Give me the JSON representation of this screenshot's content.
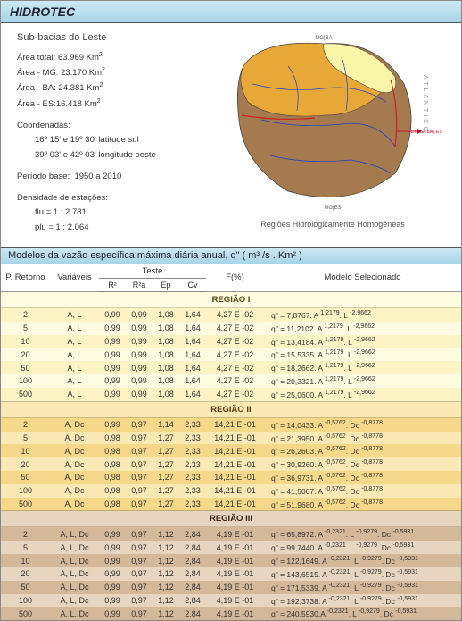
{
  "title": "HIDROTEC",
  "info": {
    "subtitle": "Sub-bacias do Leste",
    "area_total_label": "Área total:",
    "area_total": "63.969 Km",
    "area_mg_label": "Área - MG:",
    "area_mg": "23.170 Km",
    "area_ba_label": "Área - BA:",
    "area_ba": "24.381 Km",
    "area_es_label": "Área - ES:",
    "area_es": "16.418 Km",
    "coord_label": "Coordenadas:",
    "lat": "16º 15' e 19º 30'  latitude sul",
    "lon": "39º 03' e 42º 03'  longitude oeste",
    "period_label": "Período base:",
    "period": "1950  a  2010",
    "dens_label": "Densidade de estações:",
    "flu": "flu  = 1 : 2.781",
    "plu": "plu = 1 : 2.064"
  },
  "map": {
    "label_top": "MG|BA",
    "label_bottom": "MG|ES",
    "label_right": "DIVISA BA | ES",
    "ocean": "A T L Â N T I C O",
    "caption": "Regiões Hidrologicamente Homogêneas",
    "colors": {
      "r1": "#faf6a8",
      "r2": "#e8a838",
      "r3": "#a47a4e",
      "river": "#2040d0",
      "outline": "#cc2020"
    }
  },
  "section_title": "Modelos da vazão específica máxima diária anual, q\" ( m³ /s . Km² )",
  "headers": {
    "retorno": "P. Retorno",
    "variaveis": "Variáveis",
    "teste": "Teste",
    "r2": "R²",
    "r2a": "R²a",
    "ep": "Ep",
    "cv": "Cv",
    "f": "F(%)",
    "modelo": "Modelo Selecionado"
  },
  "regions": [
    {
      "label": "REGIÃO I",
      "class": "r1",
      "variaveis": "A, L",
      "rows": [
        {
          "ret": "2",
          "r2": "0,99",
          "r2a": "0,99",
          "ep": "1,08",
          "cv": "1,64",
          "f": "4,27 E -02",
          "m": "q\" = 7,8767. A 1,2179. L -2,9662"
        },
        {
          "ret": "5",
          "r2": "0,99",
          "r2a": "0,99",
          "ep": "1,08",
          "cv": "1,64",
          "f": "4,27 E -02",
          "m": "q\" = 11,2102. A 1,2179. L -2,9662"
        },
        {
          "ret": "10",
          "r2": "0,99",
          "r2a": "0,99",
          "ep": "1,08",
          "cv": "1,64",
          "f": "4,27 E -02",
          "m": "q\" = 13,4184. A 1,2179. L -2,9662"
        },
        {
          "ret": "20",
          "r2": "0,99",
          "r2a": "0,99",
          "ep": "1,08",
          "cv": "1,64",
          "f": "4,27 E -02",
          "m": "q\" = 15,5335. A 1,2179. L -2,9662"
        },
        {
          "ret": "50",
          "r2": "0,99",
          "r2a": "0,99",
          "ep": "1,08",
          "cv": "1,64",
          "f": "4,27 E -02",
          "m": "q\" = 18,2662. A 1,2179. L -2,9662"
        },
        {
          "ret": "100",
          "r2": "0,99",
          "r2a": "0,99",
          "ep": "1,08",
          "cv": "1,64",
          "f": "4,27 E -02",
          "m": "q\" = 20,3321. A 1,2179. L -2,9662"
        },
        {
          "ret": "500",
          "r2": "0,99",
          "r2a": "0,99",
          "ep": "1,08",
          "cv": "1,64",
          "f": "4,27 E -02",
          "m": "q\" = 25,0600. A 1,2179. L -2,9662"
        }
      ]
    },
    {
      "label": "REGIÃO II",
      "class": "r2",
      "variaveis": "A, Dc",
      "rows": [
        {
          "ret": "2",
          "r2": "0,99",
          "r2a": "0,97",
          "ep": "1,14",
          "cv": "2,33",
          "f": "14,21 E -01",
          "m": "q\" = 14,0433. A -0,5762. Dc -0,8778"
        },
        {
          "ret": "5",
          "r2": "0,98",
          "r2a": "0,97",
          "ep": "1,27",
          "cv": "2,33",
          "f": "14,21 E -01",
          "m": "q\" = 21,3950. A -0,5762. Dc -0,8778"
        },
        {
          "ret": "10",
          "r2": "0,98",
          "r2a": "0,97",
          "ep": "1,27",
          "cv": "2,33",
          "f": "14,21 E -01",
          "m": "q\" = 26,2603. A -0,5762. Dc -0,8778"
        },
        {
          "ret": "20",
          "r2": "0,98",
          "r2a": "0,97",
          "ep": "1,27",
          "cv": "2,33",
          "f": "14,21 E -01",
          "m": "q\" = 30,9260. A -0,5762. Dc -0,8778"
        },
        {
          "ret": "50",
          "r2": "0,98",
          "r2a": "0,97",
          "ep": "1,27",
          "cv": "2,33",
          "f": "14,21 E -01",
          "m": "q\" = 36,9731. A -0,5762. Dc -0,8778"
        },
        {
          "ret": "100",
          "r2": "0,98",
          "r2a": "0,97",
          "ep": "1,27",
          "cv": "2,33",
          "f": "14,21 E -01",
          "m": "q\" = 41,5007. A -0,5762. Dc -0,8778"
        },
        {
          "ret": "500",
          "r2": "0,98",
          "r2a": "0,97",
          "ep": "1,27",
          "cv": "2,33",
          "f": "14,21 E -01",
          "m": "q\" = 51,9680. A -0,5762. Dc -0,8778"
        }
      ]
    },
    {
      "label": "REGIÃO III",
      "class": "r3",
      "variaveis": "A, L, Dc",
      "rows": [
        {
          "ret": "2",
          "r2": "0,99",
          "r2a": "0,97",
          "ep": "1,12",
          "cv": "2,84",
          "f": "4,19 E -01",
          "m": "q\" = 65,8972. A -0,2321. L -0,9279. Dc -0,5931"
        },
        {
          "ret": "5",
          "r2": "0,99",
          "r2a": "0,97",
          "ep": "1,12",
          "cv": "2,84",
          "f": "4,19 E -01",
          "m": "q\" = 99,7440. A -0,2321. L -0,9279. Dc -0,5931"
        },
        {
          "ret": "10",
          "r2": "0,99",
          "r2a": "0,97",
          "ep": "1,12",
          "cv": "2,84",
          "f": "4,19 E -01",
          "m": "q\" = 122,1649. A -0,2321. L -0,9279. Dc -0,5931"
        },
        {
          "ret": "20",
          "r2": "0,99",
          "r2a": "0,97",
          "ep": "1,12",
          "cv": "2,84",
          "f": "4,19 E -01",
          "m": "q\" = 143,6515. A -0,2321. L -0,9279. Dc -0,5931"
        },
        {
          "ret": "50",
          "r2": "0,99",
          "r2a": "0,97",
          "ep": "1,12",
          "cv": "2,84",
          "f": "4,19 E -01",
          "m": "q\" = 171,5339. A -0,2321. L -0,9279. Dc -0,5931"
        },
        {
          "ret": "100",
          "r2": "0,99",
          "r2a": "0,97",
          "ep": "1,12",
          "cv": "2,84",
          "f": "4,19 E -01",
          "m": "q\" = 192,3738. A -0,2321. L -0,9279. Dc -0,5931"
        },
        {
          "ret": "500",
          "r2": "0,99",
          "r2a": "0,97",
          "ep": "1,12",
          "cv": "2,84",
          "f": "4,19 E -01",
          "m": "q\" = 240,5930.A -0,2321. L -0,9279. Dc -0,5931"
        }
      ]
    }
  ]
}
